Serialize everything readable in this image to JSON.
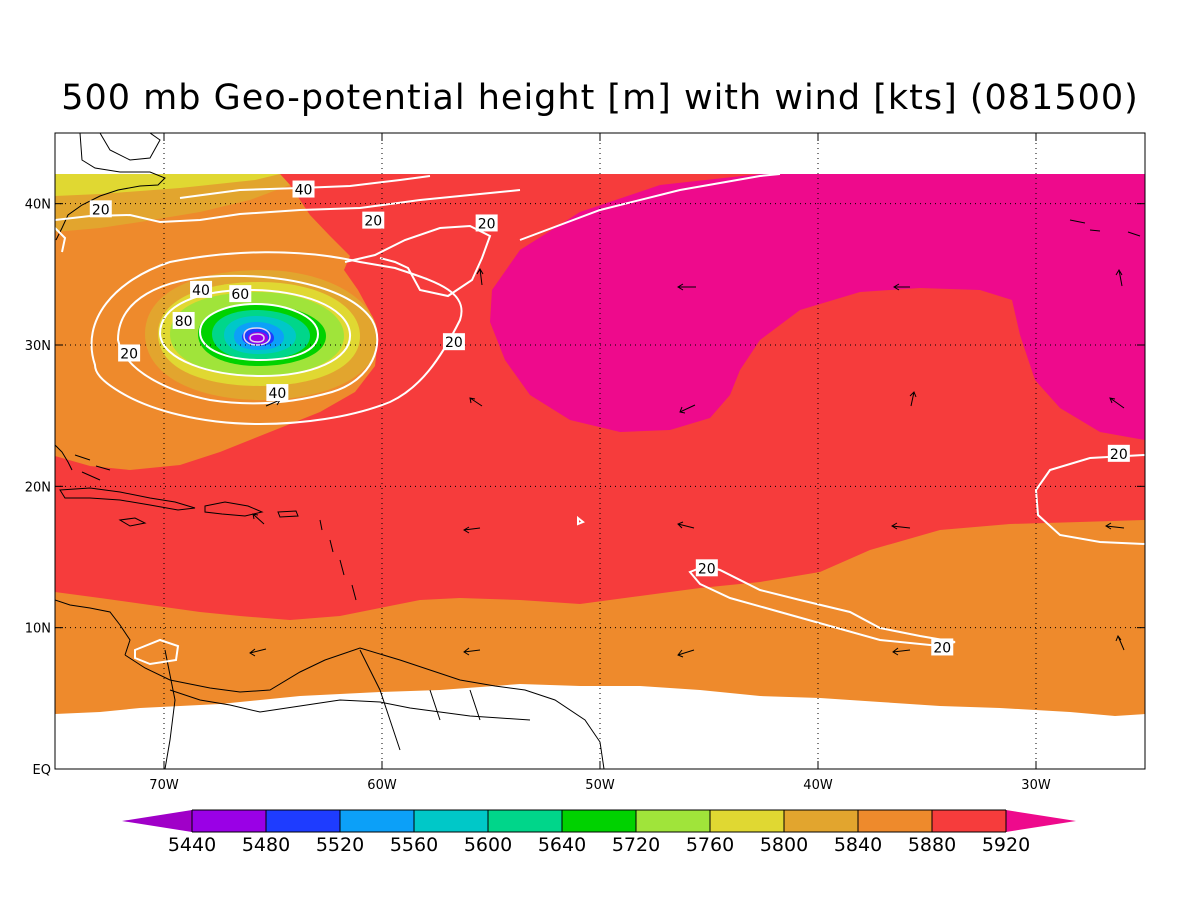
{
  "title": "500 mb Geo-potential height [m] with wind [kts] (081500)",
  "colors": {
    "white": "#ffffff",
    "orange": "#ee8a2c",
    "red": "#f63c3c",
    "magenta": "#ee0a8c",
    "gold": "#e2a52e",
    "yellow": "#e0d832",
    "lime": "#a0e43a",
    "green": "#00d200",
    "seagreen": "#00d68a",
    "cyan": "#00c8c8",
    "sky": "#0ca0f8",
    "blue": "#1e3cff",
    "purple": "#9a00e6",
    "violet": "#a000c8"
  },
  "chart_data": {
    "type": "map",
    "title": "500 mb Geo-potential height [m] with wind [kts] (081500)",
    "x_axis": {
      "range_deg_lon": [
        -75,
        -25
      ],
      "ticks": [
        {
          "lon": -70,
          "label": "70W"
        },
        {
          "lon": -60,
          "label": "60W"
        },
        {
          "lon": -50,
          "label": "50W"
        },
        {
          "lon": -40,
          "label": "40W"
        },
        {
          "lon": -30,
          "label": "30W"
        }
      ]
    },
    "y_axis": {
      "range_deg_lat": [
        0,
        45
      ],
      "ticks": [
        {
          "lat": 0,
          "label": "EQ"
        },
        {
          "lat": 10,
          "label": "10N"
        },
        {
          "lat": 20,
          "label": "20N"
        },
        {
          "lat": 30,
          "label": "30N"
        },
        {
          "lat": 40,
          "label": "40N"
        }
      ]
    },
    "grid": true,
    "colorbar": {
      "levels": [
        "5440",
        "5480",
        "5520",
        "5560",
        "5600",
        "5640",
        "5720",
        "5760",
        "5800",
        "5840",
        "5880",
        "5920"
      ],
      "colors": [
        "#a000c8",
        "#9a00e6",
        "#1e3cff",
        "#0ca0f8",
        "#00c8c8",
        "#00d68a",
        "#00d200",
        "#a0e43a",
        "#e0d832",
        "#e2a52e",
        "#ee8a2c",
        "#f63c3c",
        "#ee0a8c"
      ]
    },
    "wind_contour_labels": [
      {
        "text": "40",
        "lon": -63.6,
        "lat": 41.0
      },
      {
        "text": "20",
        "lon": -72.9,
        "lat": 39.6
      },
      {
        "text": "20",
        "lon": -60.4,
        "lat": 38.8
      },
      {
        "text": "20",
        "lon": -55.2,
        "lat": 38.6
      },
      {
        "text": "40",
        "lon": -68.3,
        "lat": 33.9
      },
      {
        "text": "60",
        "lon": -66.5,
        "lat": 33.6
      },
      {
        "text": "80",
        "lon": -69.1,
        "lat": 31.7
      },
      {
        "text": "20",
        "lon": -71.6,
        "lat": 29.4
      },
      {
        "text": "20",
        "lon": -56.7,
        "lat": 30.2
      },
      {
        "text": "40",
        "lon": -64.8,
        "lat": 26.6
      },
      {
        "text": "20",
        "lon": -26.2,
        "lat": 22.3
      },
      {
        "text": "20",
        "lon": -45.1,
        "lat": 14.2
      },
      {
        "text": "20",
        "lon": -34.3,
        "lat": 8.6
      }
    ]
  }
}
